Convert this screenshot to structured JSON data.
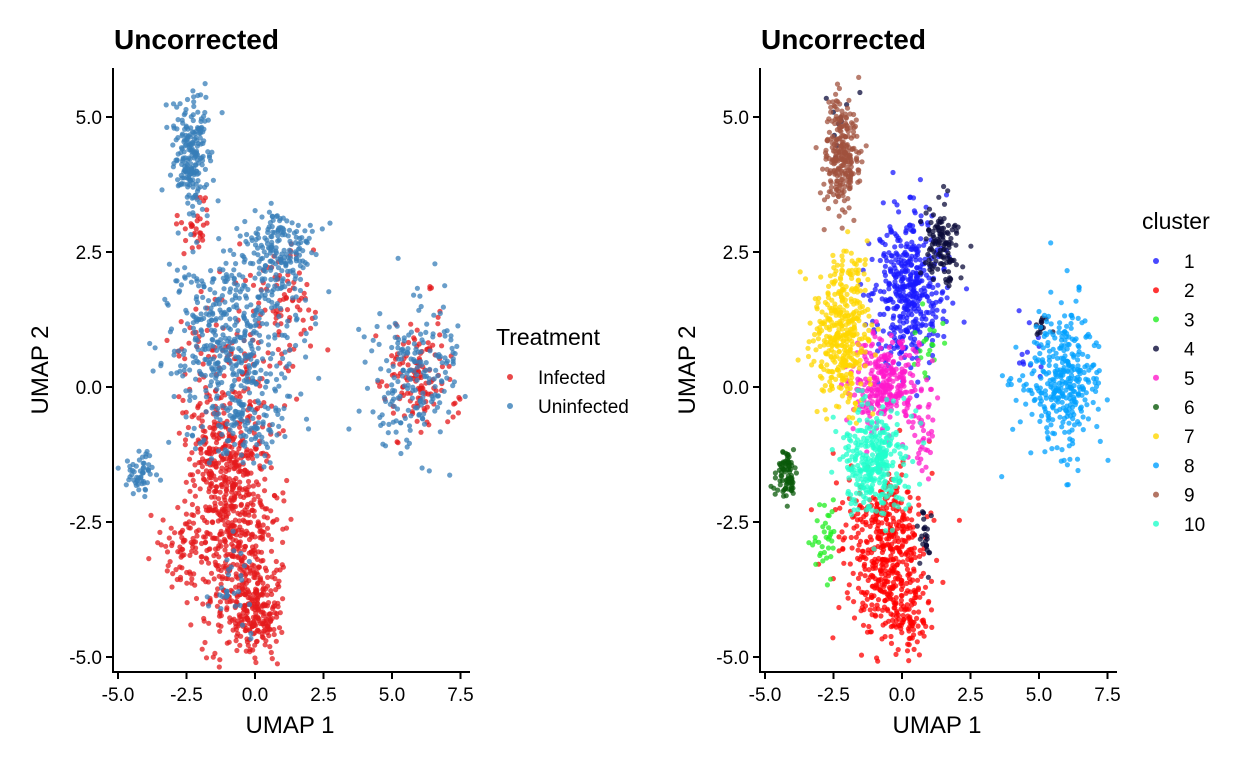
{
  "chart_data": [
    {
      "type": "scatter",
      "title": "Uncorrected",
      "xlabel": "UMAP 1",
      "ylabel": "UMAP 2",
      "xlim": [
        -5.2,
        8.0
      ],
      "ylim": [
        -5.3,
        5.9
      ],
      "x_ticks": [
        -5.0,
        -2.5,
        0.0,
        2.5,
        5.0,
        7.5
      ],
      "x_tick_labels": [
        "-5.0",
        "-2.5",
        "0.0",
        "2.5",
        "5.0",
        "7.5"
      ],
      "y_ticks": [
        -5.0,
        -2.5,
        0.0,
        2.5,
        5.0
      ],
      "y_tick_labels": [
        "-5.0",
        "-2.5",
        "0.0",
        "2.5",
        "5.0"
      ],
      "grid": false,
      "legend": {
        "title": "Treatment",
        "position": "right"
      },
      "series": [
        {
          "name": "Infected",
          "color": "#e41a1c",
          "regions": [
            {
              "cx": -0.6,
              "cy": -2.8,
              "sx": 0.75,
              "sy": 1.2,
              "n": 620
            },
            {
              "cx": 0.2,
              "cy": -4.2,
              "sx": 0.4,
              "sy": 0.35,
              "n": 140
            },
            {
              "cx": -2.6,
              "cy": -3.0,
              "sx": 0.4,
              "sy": 0.4,
              "n": 70
            },
            {
              "cx": -1.4,
              "cy": -1.3,
              "sx": 0.5,
              "sy": 0.5,
              "n": 160
            },
            {
              "cx": 6.0,
              "cy": 0.1,
              "sx": 0.7,
              "sy": 0.5,
              "n": 130
            },
            {
              "cx": 1.2,
              "cy": 1.6,
              "sx": 0.6,
              "sy": 0.6,
              "n": 70
            },
            {
              "cx": -2.2,
              "cy": 3.0,
              "sx": 0.35,
              "sy": 0.3,
              "n": 30
            },
            {
              "cx": -1.0,
              "cy": 0.6,
              "sx": 1.1,
              "sy": 0.8,
              "n": 120
            },
            {
              "cx": 6.4,
              "cy": 1.85,
              "sx": 0.02,
              "sy": 0.02,
              "n": 3
            }
          ]
        },
        {
          "name": "Uninfected",
          "color": "#377eb8",
          "regions": [
            {
              "cx": -2.3,
              "cy": 4.3,
              "sx": 0.35,
              "sy": 0.55,
              "n": 210
            },
            {
              "cx": -1.0,
              "cy": 1.0,
              "sx": 1.15,
              "sy": 0.75,
              "n": 430
            },
            {
              "cx": 0.9,
              "cy": 2.5,
              "sx": 0.6,
              "sy": 0.38,
              "n": 180
            },
            {
              "cx": 5.8,
              "cy": 0.2,
              "sx": 0.85,
              "sy": 0.7,
              "n": 200
            },
            {
              "cx": -4.2,
              "cy": -1.6,
              "sx": 0.3,
              "sy": 0.18,
              "n": 55
            },
            {
              "cx": -0.4,
              "cy": -0.6,
              "sx": 0.8,
              "sy": 0.45,
              "n": 130
            },
            {
              "cx": -0.9,
              "cy": -3.7,
              "sx": 0.5,
              "sy": 0.6,
              "n": 30
            }
          ]
        }
      ]
    },
    {
      "type": "scatter",
      "title": "Uncorrected",
      "xlabel": "UMAP 1",
      "ylabel": "UMAP 2",
      "xlim": [
        -5.2,
        8.0
      ],
      "ylim": [
        -5.3,
        5.9
      ],
      "x_ticks": [
        -5.0,
        -2.5,
        0.0,
        2.5,
        5.0,
        7.5
      ],
      "x_tick_labels": [
        "-5.0",
        "-2.5",
        "0.0",
        "2.5",
        "5.0",
        "7.5"
      ],
      "y_ticks": [
        -5.0,
        -2.5,
        0.0,
        2.5,
        5.0
      ],
      "y_tick_labels": [
        "-5.0",
        "-2.5",
        "0.0",
        "2.5",
        "5.0"
      ],
      "grid": false,
      "legend": {
        "title": "cluster",
        "position": "right"
      },
      "series": [
        {
          "name": "1",
          "color": "#1a1aff",
          "regions": [
            {
              "cx": 0.3,
              "cy": 1.8,
              "sx": 0.65,
              "sy": 0.7,
              "n": 430
            },
            {
              "cx": 4.6,
              "cy": 0.6,
              "sx": 0.25,
              "sy": 0.3,
              "n": 12
            }
          ]
        },
        {
          "name": "2",
          "color": "#ff0000",
          "regions": [
            {
              "cx": -0.6,
              "cy": -3.0,
              "sx": 0.75,
              "sy": 0.75,
              "n": 470
            },
            {
              "cx": 0.2,
              "cy": -4.3,
              "sx": 0.35,
              "sy": 0.3,
              "n": 80
            }
          ]
        },
        {
          "name": "3",
          "color": "#22ee22",
          "regions": [
            {
              "cx": -2.8,
              "cy": -2.8,
              "sx": 0.2,
              "sy": 0.3,
              "n": 35
            },
            {
              "cx": 0.8,
              "cy": 0.8,
              "sx": 0.4,
              "sy": 0.4,
              "n": 18
            }
          ]
        },
        {
          "name": "4",
          "color": "#0b0b3a",
          "regions": [
            {
              "cx": 1.4,
              "cy": 2.6,
              "sx": 0.35,
              "sy": 0.4,
              "n": 120
            },
            {
              "cx": 5.1,
              "cy": 1.1,
              "sx": 0.2,
              "sy": 0.1,
              "n": 15
            },
            {
              "cx": 0.8,
              "cy": -2.8,
              "sx": 0.12,
              "sy": 0.3,
              "n": 25
            },
            {
              "cx": -2.2,
              "cy": 4.8,
              "sx": 0.4,
              "sy": 0.3,
              "n": 10
            }
          ]
        },
        {
          "name": "5",
          "color": "#ff1acb",
          "regions": [
            {
              "cx": -0.6,
              "cy": 0.1,
              "sx": 0.6,
              "sy": 0.45,
              "n": 300
            },
            {
              "cx": 0.7,
              "cy": -0.8,
              "sx": 0.3,
              "sy": 0.4,
              "n": 40
            }
          ]
        },
        {
          "name": "6",
          "color": "#0a5a0a",
          "regions": [
            {
              "cx": -4.2,
              "cy": -1.65,
              "sx": 0.22,
              "sy": 0.2,
              "n": 80
            }
          ]
        },
        {
          "name": "7",
          "color": "#ffd700",
          "regions": [
            {
              "cx": -2.2,
              "cy": 0.9,
              "sx": 0.5,
              "sy": 0.65,
              "n": 360
            },
            {
              "cx": -1.8,
              "cy": 2.0,
              "sx": 0.35,
              "sy": 0.3,
              "n": 40
            }
          ]
        },
        {
          "name": "8",
          "color": "#00a0ff",
          "regions": [
            {
              "cx": 5.8,
              "cy": 0.1,
              "sx": 0.7,
              "sy": 0.65,
              "n": 340
            },
            {
              "cx": 6.45,
              "cy": 1.85,
              "sx": 0.02,
              "sy": 0.02,
              "n": 3
            }
          ]
        },
        {
          "name": "9",
          "color": "#a0523d",
          "regions": [
            {
              "cx": -2.2,
              "cy": 4.3,
              "sx": 0.3,
              "sy": 0.55,
              "n": 260
            }
          ]
        },
        {
          "name": "10",
          "color": "#22ffcc",
          "regions": [
            {
              "cx": -1.0,
              "cy": -1.4,
              "sx": 0.65,
              "sy": 0.5,
              "n": 330
            }
          ]
        }
      ]
    }
  ]
}
